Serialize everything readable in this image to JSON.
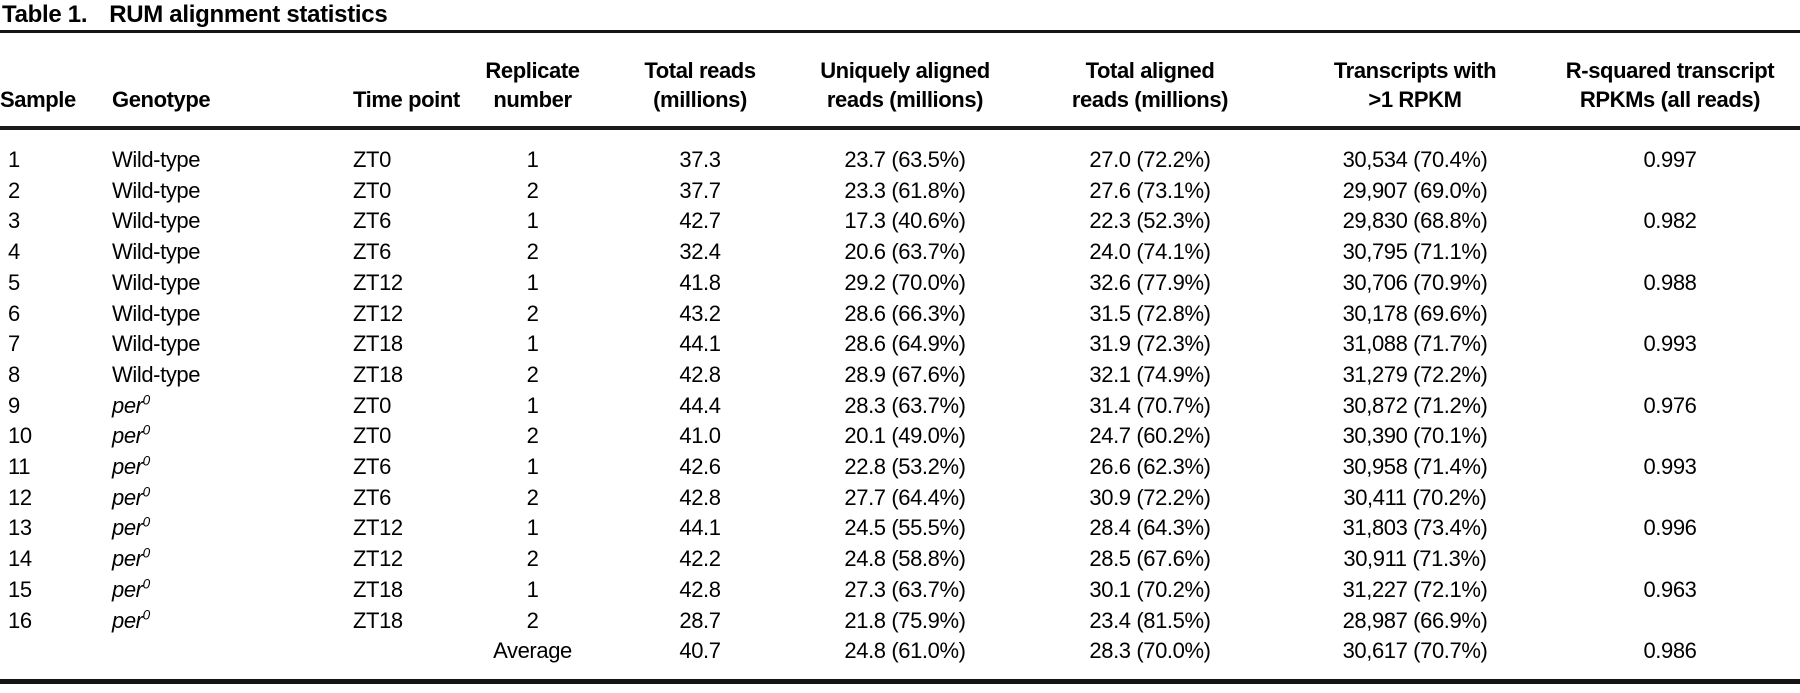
{
  "colors": {
    "text": "#000000",
    "background": "#ffffff",
    "rule": "#151515"
  },
  "table": {
    "title_label": "Table 1.",
    "title_text": "RUM alignment statistics",
    "columns": [
      {
        "key": "sample",
        "label": "Sample",
        "align": "left"
      },
      {
        "key": "genotype",
        "label": "Genotype",
        "align": "left"
      },
      {
        "key": "time-point",
        "label": "Time point",
        "align": "left"
      },
      {
        "key": "replicate-number",
        "label": "Replicate\nnumber",
        "align": "center"
      },
      {
        "key": "total-reads",
        "label": "Total reads\n(millions)",
        "align": "center"
      },
      {
        "key": "uniquely-aligned-reads",
        "label": "Uniquely aligned\nreads (millions)",
        "align": "center"
      },
      {
        "key": "total-aligned-reads",
        "label": "Total aligned\nreads (millions)",
        "align": "center"
      },
      {
        "key": "transcripts-rpkm",
        "label": "Transcripts with\n>1 RPKM",
        "align": "center"
      },
      {
        "key": "r-squared",
        "label": "R-squared transcript\nRPKMs (all reads)",
        "align": "center"
      }
    ],
    "rows": [
      {
        "sample": "1",
        "genotype": "Wild-type",
        "genotype_sup": "",
        "genotype_italic": false,
        "time_point": "ZT0",
        "replicate": "1",
        "total_reads": "37.3",
        "uniquely_aligned": "23.7 (63.5%)",
        "total_aligned": "27.0 (72.2%)",
        "transcripts": "30,534 (70.4%)",
        "r_squared": "0.997"
      },
      {
        "sample": "2",
        "genotype": "Wild-type",
        "genotype_sup": "",
        "genotype_italic": false,
        "time_point": "ZT0",
        "replicate": "2",
        "total_reads": "37.7",
        "uniquely_aligned": "23.3 (61.8%)",
        "total_aligned": "27.6 (73.1%)",
        "transcripts": "29,907 (69.0%)",
        "r_squared": ""
      },
      {
        "sample": "3",
        "genotype": "Wild-type",
        "genotype_sup": "",
        "genotype_italic": false,
        "time_point": "ZT6",
        "replicate": "1",
        "total_reads": "42.7",
        "uniquely_aligned": "17.3 (40.6%)",
        "total_aligned": "22.3 (52.3%)",
        "transcripts": "29,830 (68.8%)",
        "r_squared": "0.982"
      },
      {
        "sample": "4",
        "genotype": "Wild-type",
        "genotype_sup": "",
        "genotype_italic": false,
        "time_point": "ZT6",
        "replicate": "2",
        "total_reads": "32.4",
        "uniquely_aligned": "20.6 (63.7%)",
        "total_aligned": "24.0 (74.1%)",
        "transcripts": "30,795 (71.1%)",
        "r_squared": ""
      },
      {
        "sample": "5",
        "genotype": "Wild-type",
        "genotype_sup": "",
        "genotype_italic": false,
        "time_point": "ZT12",
        "replicate": "1",
        "total_reads": "41.8",
        "uniquely_aligned": "29.2 (70.0%)",
        "total_aligned": "32.6 (77.9%)",
        "transcripts": "30,706 (70.9%)",
        "r_squared": "0.988"
      },
      {
        "sample": "6",
        "genotype": "Wild-type",
        "genotype_sup": "",
        "genotype_italic": false,
        "time_point": "ZT12",
        "replicate": "2",
        "total_reads": "43.2",
        "uniquely_aligned": "28.6 (66.3%)",
        "total_aligned": "31.5 (72.8%)",
        "transcripts": "30,178 (69.6%)",
        "r_squared": ""
      },
      {
        "sample": "7",
        "genotype": "Wild-type",
        "genotype_sup": "",
        "genotype_italic": false,
        "time_point": "ZT18",
        "replicate": "1",
        "total_reads": "44.1",
        "uniquely_aligned": "28.6 (64.9%)",
        "total_aligned": "31.9 (72.3%)",
        "transcripts": "31,088 (71.7%)",
        "r_squared": "0.993"
      },
      {
        "sample": "8",
        "genotype": "Wild-type",
        "genotype_sup": "",
        "genotype_italic": false,
        "time_point": "ZT18",
        "replicate": "2",
        "total_reads": "42.8",
        "uniquely_aligned": "28.9 (67.6%)",
        "total_aligned": "32.1 (74.9%)",
        "transcripts": "31,279 (72.2%)",
        "r_squared": ""
      },
      {
        "sample": "9",
        "genotype": "per",
        "genotype_sup": "0",
        "genotype_italic": true,
        "time_point": "ZT0",
        "replicate": "1",
        "total_reads": "44.4",
        "uniquely_aligned": "28.3 (63.7%)",
        "total_aligned": "31.4 (70.7%)",
        "transcripts": "30,872 (71.2%)",
        "r_squared": "0.976"
      },
      {
        "sample": "10",
        "genotype": "per",
        "genotype_sup": "0",
        "genotype_italic": true,
        "time_point": "ZT0",
        "replicate": "2",
        "total_reads": "41.0",
        "uniquely_aligned": "20.1 (49.0%)",
        "total_aligned": "24.7 (60.2%)",
        "transcripts": "30,390 (70.1%)",
        "r_squared": ""
      },
      {
        "sample": "11",
        "genotype": "per",
        "genotype_sup": "0",
        "genotype_italic": true,
        "time_point": "ZT6",
        "replicate": "1",
        "total_reads": "42.6",
        "uniquely_aligned": "22.8 (53.2%)",
        "total_aligned": "26.6 (62.3%)",
        "transcripts": "30,958 (71.4%)",
        "r_squared": "0.993"
      },
      {
        "sample": "12",
        "genotype": "per",
        "genotype_sup": "0",
        "genotype_italic": true,
        "time_point": "ZT6",
        "replicate": "2",
        "total_reads": "42.8",
        "uniquely_aligned": "27.7 (64.4%)",
        "total_aligned": "30.9 (72.2%)",
        "transcripts": "30,411 (70.2%)",
        "r_squared": ""
      },
      {
        "sample": "13",
        "genotype": "per",
        "genotype_sup": "0",
        "genotype_italic": true,
        "time_point": "ZT12",
        "replicate": "1",
        "total_reads": "44.1",
        "uniquely_aligned": "24.5 (55.5%)",
        "total_aligned": "28.4 (64.3%)",
        "transcripts": "31,803 (73.4%)",
        "r_squared": "0.996"
      },
      {
        "sample": "14",
        "genotype": "per",
        "genotype_sup": "0",
        "genotype_italic": true,
        "time_point": "ZT12",
        "replicate": "2",
        "total_reads": "42.2",
        "uniquely_aligned": "24.8 (58.8%)",
        "total_aligned": "28.5 (67.6%)",
        "transcripts": "30,911 (71.3%)",
        "r_squared": ""
      },
      {
        "sample": "15",
        "genotype": "per",
        "genotype_sup": "0",
        "genotype_italic": true,
        "time_point": "ZT18",
        "replicate": "1",
        "total_reads": "42.8",
        "uniquely_aligned": "27.3 (63.7%)",
        "total_aligned": "30.1 (70.2%)",
        "transcripts": "31,227 (72.1%)",
        "r_squared": "0.963"
      },
      {
        "sample": "16",
        "genotype": "per",
        "genotype_sup": "0",
        "genotype_italic": true,
        "time_point": "ZT18",
        "replicate": "2",
        "total_reads": "28.7",
        "uniquely_aligned": "21.8 (75.9%)",
        "total_aligned": "23.4 (81.5%)",
        "transcripts": "28,987 (66.9%)",
        "r_squared": ""
      },
      {
        "sample": "",
        "genotype": "",
        "genotype_sup": "",
        "genotype_italic": false,
        "time_point": "",
        "replicate": "Average",
        "total_reads": "40.7",
        "uniquely_aligned": "24.8 (61.0%)",
        "total_aligned": "28.3 (70.0%)",
        "transcripts": "30,617 (70.7%)",
        "r_squared": "0.986"
      }
    ]
  }
}
